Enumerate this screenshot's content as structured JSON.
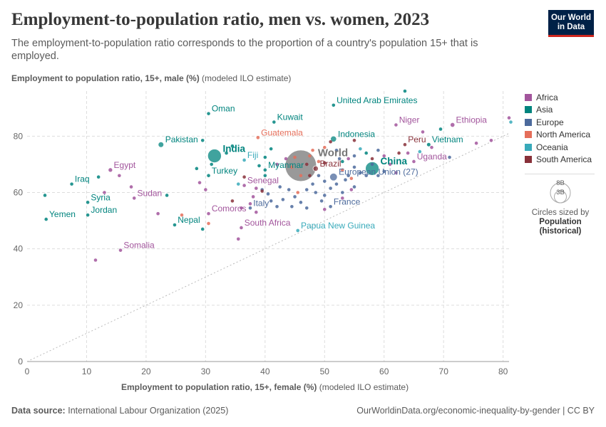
{
  "header": {
    "title": "Employment-to-population ratio, men vs. women, 2023",
    "subtitle": "The employment-to-population ratio corresponds to the proportion of a country's population 15+ that is employed.",
    "logo_line1": "Our World",
    "logo_line2": "in Data"
  },
  "axes": {
    "y_label_bold": "Employment to population ratio, 15+, male (%)",
    "y_label_rest": "(modeled ILO estimate)",
    "x_label_bold": "Employment to population ratio, 15+, female (%)",
    "x_label_rest": "(modeled ILO estimate)"
  },
  "legend": {
    "items": [
      {
        "label": "Africa",
        "color": "#a2559c"
      },
      {
        "label": "Asia",
        "color": "#00847e"
      },
      {
        "label": "Europe",
        "color": "#4c6a9c"
      },
      {
        "label": "North America",
        "color": "#e56e5a"
      },
      {
        "label": "Oceania",
        "color": "#38aaba"
      },
      {
        "label": "South America",
        "color": "#883039"
      }
    ],
    "size_big": "8B",
    "size_small": "3B",
    "size_caption_1": "Circles sized by",
    "size_caption_2": "Population",
    "size_caption_3": "(historical)"
  },
  "footer": {
    "source_label": "Data source:",
    "source_text": "International Labour Organization (2025)",
    "url": "OurWorldinData.org/economic-inequality-by-gender | CC BY"
  },
  "chart_data": {
    "type": "scatter",
    "xlim": [
      0,
      81
    ],
    "ylim": [
      0,
      96
    ],
    "xticks": [
      0,
      10,
      20,
      30,
      40,
      50,
      60,
      70,
      80
    ],
    "yticks": [
      0,
      20,
      40,
      60,
      80
    ],
    "colors": {
      "Africa": "#a2559c",
      "Asia": "#00847e",
      "Europe": "#4c6a9c",
      "North America": "#e56e5a",
      "Oceania": "#38aaba",
      "South America": "#883039",
      "World": "#777777"
    },
    "labeled_points": [
      {
        "name": "Oman",
        "x": 30.5,
        "y": 88,
        "region": "Asia",
        "pop": 0.005
      },
      {
        "name": "Kuwait",
        "x": 41.5,
        "y": 85,
        "region": "Asia",
        "pop": 0.0045
      },
      {
        "name": "United Arab Emirates",
        "x": 51.5,
        "y": 91,
        "region": "Asia",
        "pop": 0.0095
      },
      {
        "name": "Niger",
        "x": 62,
        "y": 84,
        "region": "Africa",
        "pop": 0.027
      },
      {
        "name": "Ethiopia",
        "x": 71.5,
        "y": 84,
        "region": "Africa",
        "pop": 0.126
      },
      {
        "name": "Guatemala",
        "x": 38.8,
        "y": 79.5,
        "region": "North America",
        "pop": 0.018
      },
      {
        "name": "Indonesia",
        "x": 51.5,
        "y": 79,
        "region": "Asia",
        "pop": 0.277
      },
      {
        "name": "Peru",
        "x": 63.5,
        "y": 77,
        "region": "South America",
        "pop": 0.034
      },
      {
        "name": "Vietnam",
        "x": 67.5,
        "y": 77,
        "region": "Asia",
        "pop": 0.099
      },
      {
        "name": "Pakistan",
        "x": 22.5,
        "y": 77,
        "region": "Asia",
        "pop": 0.24
      },
      {
        "name": "India",
        "x": 31.5,
        "y": 73,
        "region": "Asia",
        "pop": 1.43
      },
      {
        "name": "Fiji",
        "x": 36.5,
        "y": 71.5,
        "region": "Oceania",
        "pop": 0.0009
      },
      {
        "name": "World",
        "x": 46,
        "y": 69.5,
        "region": "World",
        "pop": 8.0
      },
      {
        "name": "Uganda",
        "x": 65,
        "y": 71,
        "region": "Africa",
        "pop": 0.048
      },
      {
        "name": "China",
        "x": 58,
        "y": 68.5,
        "region": "Asia",
        "pop": 1.41
      },
      {
        "name": "Brazil",
        "x": 48.5,
        "y": 68.5,
        "region": "South America",
        "pop": 0.216
      },
      {
        "name": "Myanmar",
        "x": 40,
        "y": 68,
        "region": "Asia",
        "pop": 0.054
      },
      {
        "name": "Egypt",
        "x": 14,
        "y": 68,
        "region": "Africa",
        "pop": 0.112
      },
      {
        "name": "Turkey",
        "x": 30.5,
        "y": 66,
        "region": "Asia",
        "pop": 0.085
      },
      {
        "name": "Iraq",
        "x": 7.5,
        "y": 63,
        "region": "Asia",
        "pop": 0.045
      },
      {
        "name": "Senegal",
        "x": 36.5,
        "y": 62.5,
        "region": "Africa",
        "pop": 0.018
      },
      {
        "name": "European Union (27)",
        "x": 51.5,
        "y": 65.5,
        "region": "Europe",
        "pop": 0.448
      },
      {
        "name": "Syria",
        "x": 10.2,
        "y": 56.5,
        "region": "Asia",
        "pop": 0.023
      },
      {
        "name": "Sudan",
        "x": 18,
        "y": 58,
        "region": "Africa",
        "pop": 0.048
      },
      {
        "name": "France",
        "x": 51,
        "y": 55,
        "region": "Europe",
        "pop": 0.068
      },
      {
        "name": "Italy",
        "x": 37.5,
        "y": 54.5,
        "region": "Europe",
        "pop": 0.059
      },
      {
        "name": "Comoros",
        "x": 30.5,
        "y": 52.5,
        "region": "Africa",
        "pop": 0.0008
      },
      {
        "name": "Jordan",
        "x": 10.2,
        "y": 52,
        "region": "Asia",
        "pop": 0.011
      },
      {
        "name": "Yemen",
        "x": 3.2,
        "y": 50.5,
        "region": "Asia",
        "pop": 0.034
      },
      {
        "name": "Nepal",
        "x": 24.8,
        "y": 48.5,
        "region": "Asia",
        "pop": 0.03
      },
      {
        "name": "South Africa",
        "x": 36,
        "y": 47.5,
        "region": "Africa",
        "pop": 0.06
      },
      {
        "name": "Papua New Guinea",
        "x": 45.5,
        "y": 46.5,
        "region": "Oceania",
        "pop": 0.01
      },
      {
        "name": "Somalia",
        "x": 15.7,
        "y": 39.5,
        "region": "Africa",
        "pop": 0.018
      }
    ],
    "points": [
      {
        "x": 63.5,
        "y": 96,
        "region": "Asia",
        "pop": 0.002
      },
      {
        "x": 81,
        "y": 86.5,
        "region": "Africa",
        "pop": 0.003
      },
      {
        "x": 81.3,
        "y": 85,
        "region": "Oceania",
        "pop": 0.002
      },
      {
        "x": 78,
        "y": 78.5,
        "region": "Africa",
        "pop": 0.006
      },
      {
        "x": 75.5,
        "y": 77.5,
        "region": "Africa",
        "pop": 0.006
      },
      {
        "x": 69.5,
        "y": 82.5,
        "region": "Asia",
        "pop": 0.007
      },
      {
        "x": 66.5,
        "y": 81.5,
        "region": "Africa",
        "pop": 0.006
      },
      {
        "x": 71,
        "y": 72.5,
        "region": "Europe",
        "pop": 0.005
      },
      {
        "x": 68,
        "y": 76,
        "region": "Africa",
        "pop": 0.006
      },
      {
        "x": 64,
        "y": 74,
        "region": "Africa",
        "pop": 0.005
      },
      {
        "x": 62.5,
        "y": 74,
        "region": "South America",
        "pop": 0.005
      },
      {
        "x": 60,
        "y": 73,
        "region": "Africa",
        "pop": 0.005
      },
      {
        "x": 59,
        "y": 75,
        "region": "Europe",
        "pop": 0.005
      },
      {
        "x": 61,
        "y": 70,
        "region": "Africa",
        "pop": 0.005
      },
      {
        "x": 62,
        "y": 67,
        "region": "Africa",
        "pop": 0.005
      },
      {
        "x": 58,
        "y": 70,
        "region": "Europe",
        "pop": 0.004
      },
      {
        "x": 57,
        "y": 74,
        "region": "Asia",
        "pop": 0.004
      },
      {
        "x": 56,
        "y": 75.5,
        "region": "Oceania",
        "pop": 0.003
      },
      {
        "x": 55,
        "y": 73,
        "region": "Europe",
        "pop": 0.004
      },
      {
        "x": 54,
        "y": 72,
        "region": "Africa",
        "pop": 0.005
      },
      {
        "x": 53,
        "y": 71,
        "region": "Asia",
        "pop": 0.005
      },
      {
        "x": 52.5,
        "y": 72,
        "region": "Europe",
        "pop": 0.005
      },
      {
        "x": 55,
        "y": 69,
        "region": "Europe",
        "pop": 0.005
      },
      {
        "x": 56,
        "y": 67,
        "region": "Europe",
        "pop": 0.005
      },
      {
        "x": 57,
        "y": 66,
        "region": "Europe",
        "pop": 0.005
      },
      {
        "x": 59,
        "y": 66,
        "region": "Europe",
        "pop": 0.005
      },
      {
        "x": 60,
        "y": 67.5,
        "region": "Europe",
        "pop": 0.005
      },
      {
        "x": 54,
        "y": 66,
        "region": "Europe",
        "pop": 0.005
      },
      {
        "x": 53.5,
        "y": 64.5,
        "region": "Europe",
        "pop": 0.005
      },
      {
        "x": 52,
        "y": 63,
        "region": "Europe",
        "pop": 0.005
      },
      {
        "x": 50,
        "y": 64,
        "region": "Europe",
        "pop": 0.005
      },
      {
        "x": 49,
        "y": 66,
        "region": "Europe",
        "pop": 0.005
      },
      {
        "x": 48,
        "y": 63,
        "region": "Europe",
        "pop": 0.005
      },
      {
        "x": 47,
        "y": 61,
        "region": "Europe",
        "pop": 0.005
      },
      {
        "x": 48.5,
        "y": 60,
        "region": "Europe",
        "pop": 0.005
      },
      {
        "x": 50,
        "y": 59,
        "region": "Europe",
        "pop": 0.005
      },
      {
        "x": 51,
        "y": 61.5,
        "region": "Europe",
        "pop": 0.005
      },
      {
        "x": 53,
        "y": 60,
        "region": "Europe",
        "pop": 0.005
      },
      {
        "x": 55,
        "y": 62,
        "region": "Europe",
        "pop": 0.005
      },
      {
        "x": 49.5,
        "y": 57,
        "region": "Europe",
        "pop": 0.005
      },
      {
        "x": 46,
        "y": 56.5,
        "region": "Europe",
        "pop": 0.005
      },
      {
        "x": 45,
        "y": 58.5,
        "region": "Europe",
        "pop": 0.005
      },
      {
        "x": 44,
        "y": 61,
        "region": "Europe",
        "pop": 0.005
      },
      {
        "x": 42.5,
        "y": 62,
        "region": "Europe",
        "pop": 0.005
      },
      {
        "x": 43,
        "y": 57.5,
        "region": "Europe",
        "pop": 0.005
      },
      {
        "x": 42,
        "y": 55,
        "region": "Europe",
        "pop": 0.005
      },
      {
        "x": 41,
        "y": 57,
        "region": "Europe",
        "pop": 0.005
      },
      {
        "x": 40.5,
        "y": 59.5,
        "region": "Europe",
        "pop": 0.005
      },
      {
        "x": 39.5,
        "y": 61,
        "region": "Europe",
        "pop": 0.005
      },
      {
        "x": 47,
        "y": 54.5,
        "region": "Europe",
        "pop": 0.005
      },
      {
        "x": 44.5,
        "y": 55,
        "region": "Europe",
        "pop": 0.005
      },
      {
        "x": 50,
        "y": 54,
        "region": "Africa",
        "pop": 0.005
      },
      {
        "x": 54.5,
        "y": 61,
        "region": "Africa",
        "pop": 0.005
      },
      {
        "x": 53,
        "y": 58,
        "region": "Africa",
        "pop": 0.005
      },
      {
        "x": 45.5,
        "y": 60,
        "region": "North America",
        "pop": 0.005
      },
      {
        "x": 47.5,
        "y": 73,
        "region": "North America",
        "pop": 0.005
      },
      {
        "x": 48,
        "y": 75,
        "region": "North America",
        "pop": 0.005
      },
      {
        "x": 45,
        "y": 72.5,
        "region": "North America",
        "pop": 0.005
      },
      {
        "x": 49,
        "y": 71,
        "region": "North America",
        "pop": 0.005
      },
      {
        "x": 44.5,
        "y": 69,
        "region": "North America",
        "pop": 0.005
      },
      {
        "x": 46,
        "y": 66,
        "region": "North America",
        "pop": 0.005
      },
      {
        "x": 53,
        "y": 68,
        "region": "North America",
        "pop": 0.005
      },
      {
        "x": 54.5,
        "y": 65,
        "region": "North America",
        "pop": 0.005
      },
      {
        "x": 50,
        "y": 76,
        "region": "North America",
        "pop": 0.005
      },
      {
        "x": 51,
        "y": 78,
        "region": "South America",
        "pop": 0.005
      },
      {
        "x": 55,
        "y": 78.5,
        "region": "South America",
        "pop": 0.005
      },
      {
        "x": 47,
        "y": 70,
        "region": "South America",
        "pop": 0.005
      },
      {
        "x": 47.5,
        "y": 66,
        "region": "South America",
        "pop": 0.005
      },
      {
        "x": 50,
        "y": 70.5,
        "region": "South America",
        "pop": 0.005
      },
      {
        "x": 43.5,
        "y": 72,
        "region": "Africa",
        "pop": 0.005
      },
      {
        "x": 42,
        "y": 70,
        "region": "Africa",
        "pop": 0.005
      },
      {
        "x": 39,
        "y": 69.5,
        "region": "Asia",
        "pop": 0.005
      },
      {
        "x": 40,
        "y": 72.5,
        "region": "Asia",
        "pop": 0.005
      },
      {
        "x": 41,
        "y": 75.5,
        "region": "Asia",
        "pop": 0.005
      },
      {
        "x": 34.5,
        "y": 76.5,
        "region": "Asia",
        "pop": 0.005
      },
      {
        "x": 33.5,
        "y": 74,
        "region": "Asia",
        "pop": 0.005
      },
      {
        "x": 29.5,
        "y": 78.5,
        "region": "Asia",
        "pop": 0.005
      },
      {
        "x": 28.5,
        "y": 68.5,
        "region": "Asia",
        "pop": 0.005
      },
      {
        "x": 31,
        "y": 70,
        "region": "Asia",
        "pop": 0.005
      },
      {
        "x": 36.5,
        "y": 65.5,
        "region": "South America",
        "pop": 0.005
      },
      {
        "x": 35.5,
        "y": 63,
        "region": "Oceania",
        "pop": 0.005
      },
      {
        "x": 38.5,
        "y": 61.5,
        "region": "Africa",
        "pop": 0.005
      },
      {
        "x": 39.5,
        "y": 60.5,
        "region": "South America",
        "pop": 0.005
      },
      {
        "x": 38,
        "y": 58.5,
        "region": "Africa",
        "pop": 0.005
      },
      {
        "x": 36,
        "y": 54.5,
        "region": "Africa",
        "pop": 0.005
      },
      {
        "x": 34.5,
        "y": 57,
        "region": "South America",
        "pop": 0.005
      },
      {
        "x": 37.5,
        "y": 56,
        "region": "Africa",
        "pop": 0.005
      },
      {
        "x": 38.5,
        "y": 53,
        "region": "Africa",
        "pop": 0.005
      },
      {
        "x": 35.5,
        "y": 43.5,
        "region": "Africa",
        "pop": 0.005
      },
      {
        "x": 30.5,
        "y": 49,
        "region": "North America",
        "pop": 0.005
      },
      {
        "x": 29.5,
        "y": 47,
        "region": "Asia",
        "pop": 0.005
      },
      {
        "x": 26,
        "y": 52,
        "region": "North America",
        "pop": 0.005
      },
      {
        "x": 23.5,
        "y": 59,
        "region": "Asia",
        "pop": 0.005
      },
      {
        "x": 22,
        "y": 52.5,
        "region": "Africa",
        "pop": 0.005
      },
      {
        "x": 17.5,
        "y": 62,
        "region": "Africa",
        "pop": 0.005
      },
      {
        "x": 15.5,
        "y": 66,
        "region": "Africa",
        "pop": 0.005
      },
      {
        "x": 13,
        "y": 60,
        "region": "Africa",
        "pop": 0.005
      },
      {
        "x": 12,
        "y": 65.5,
        "region": "Asia",
        "pop": 0.005
      },
      {
        "x": 11.5,
        "y": 36,
        "region": "Africa",
        "pop": 0.005
      },
      {
        "x": 3,
        "y": 59,
        "region": "Asia",
        "pop": 0.005
      },
      {
        "x": 29,
        "y": 63.5,
        "region": "Africa",
        "pop": 0.005
      },
      {
        "x": 30,
        "y": 61,
        "region": "Africa",
        "pop": 0.005
      },
      {
        "x": 40,
        "y": 66,
        "region": "Asia",
        "pop": 0.005
      },
      {
        "x": 52,
        "y": 75,
        "region": "Europe",
        "pop": 0.005
      },
      {
        "x": 58,
        "y": 72,
        "region": "South America",
        "pop": 0.005
      },
      {
        "x": 66,
        "y": 74.5,
        "region": "Oceania",
        "pop": 0.005
      }
    ]
  }
}
